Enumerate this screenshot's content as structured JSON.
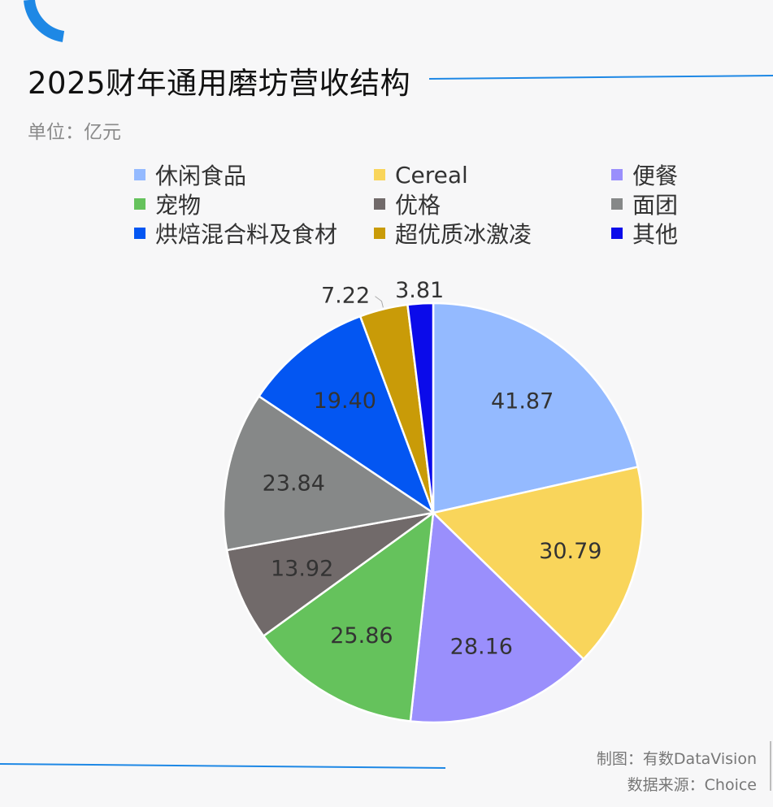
{
  "title": "2025财年通用磨坊营收结构",
  "unit": "单位：亿元",
  "footer": {
    "maker": "制图：有数DataVision",
    "source": "数据来源：Choice"
  },
  "colors": {
    "accent": "#1e88e5"
  },
  "chart_data": {
    "type": "pie",
    "title": "2025财年通用磨坊营收结构",
    "unit": "亿元",
    "legend_position": "top",
    "start_angle": "12 o'clock",
    "direction": "clockwise",
    "slices": [
      {
        "label": "休闲食品",
        "value": 41.87,
        "color": "#94baff"
      },
      {
        "label": "Cereal",
        "value": 30.79,
        "color": "#f9d55b"
      },
      {
        "label": "便餐",
        "value": 28.16,
        "color": "#9a8ffc"
      },
      {
        "label": "宠物",
        "value": 25.86,
        "color": "#65c25c"
      },
      {
        "label": "优格",
        "value": 13.92,
        "color": "#716a6a"
      },
      {
        "label": "面团",
        "value": 23.84,
        "color": "#868888"
      },
      {
        "label": "烘焙混合料及食材",
        "value": 19.4,
        "color": "#0356f2"
      },
      {
        "label": "超优质冰激凌",
        "value": 7.22,
        "color": "#c99b08"
      },
      {
        "label": "其他",
        "value": 3.81,
        "color": "#0b0bea"
      }
    ]
  }
}
